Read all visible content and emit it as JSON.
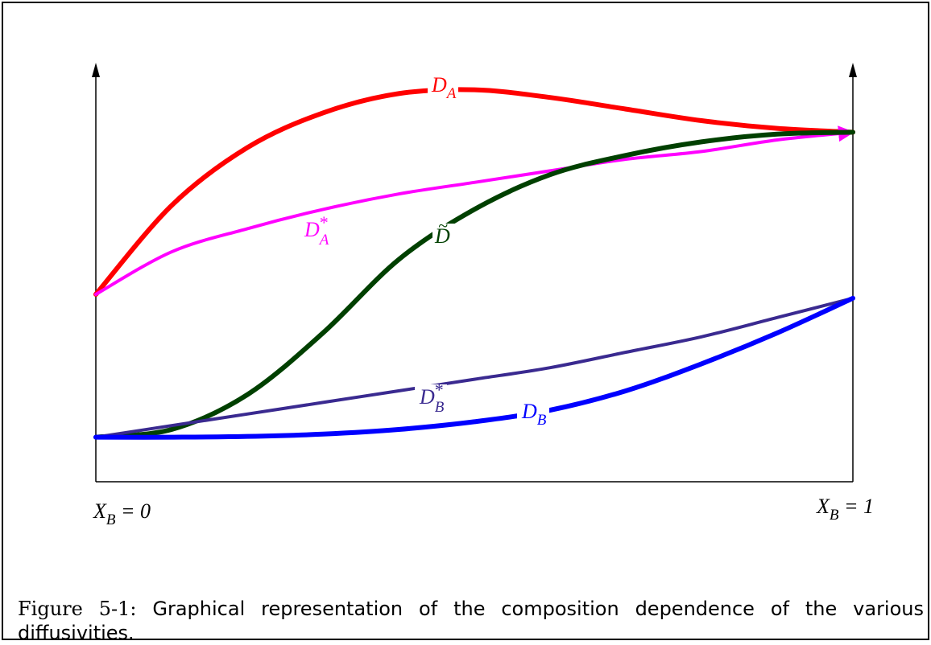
{
  "chart_data": {
    "type": "line",
    "title": "",
    "xlabel": "",
    "ylabel": "",
    "x_axis_labels": {
      "left": "X_B = 0",
      "right": "X_B = 1"
    },
    "x_range": [
      0,
      1
    ],
    "y_range": [
      0,
      1
    ],
    "axes": {
      "left_arrow": true,
      "right_arrow": true,
      "grid": false
    },
    "series": [
      {
        "name": "D_A",
        "label": {
          "base": "D",
          "sub": "A",
          "sup": ""
        },
        "color": "#ff0000",
        "width": 6,
        "points": [
          [
            0,
            0.45
          ],
          [
            0.1,
            0.68
          ],
          [
            0.2,
            0.83
          ],
          [
            0.3,
            0.92
          ],
          [
            0.4,
            0.97
          ],
          [
            0.5,
            0.98
          ],
          [
            0.6,
            0.96
          ],
          [
            0.7,
            0.93
          ],
          [
            0.8,
            0.9
          ],
          [
            0.9,
            0.88
          ],
          [
            1,
            0.87
          ]
        ]
      },
      {
        "name": "D*_A",
        "label": {
          "base": "D",
          "sub": "A",
          "sup": "*"
        },
        "color": "#ff00ff",
        "width": 4,
        "arrow": true,
        "points": [
          [
            0,
            0.45
          ],
          [
            0.1,
            0.56
          ],
          [
            0.2,
            0.62
          ],
          [
            0.3,
            0.67
          ],
          [
            0.4,
            0.71
          ],
          [
            0.5,
            0.74
          ],
          [
            0.6,
            0.77
          ],
          [
            0.7,
            0.8
          ],
          [
            0.8,
            0.82
          ],
          [
            0.9,
            0.85
          ],
          [
            1,
            0.87
          ]
        ]
      },
      {
        "name": "D~",
        "label": {
          "base": "D",
          "sub": "",
          "sup": "",
          "accent": "~"
        },
        "color": "#004000",
        "width": 6,
        "points": [
          [
            0,
            0.08
          ],
          [
            0.1,
            0.1
          ],
          [
            0.2,
            0.19
          ],
          [
            0.3,
            0.35
          ],
          [
            0.4,
            0.54
          ],
          [
            0.5,
            0.67
          ],
          [
            0.6,
            0.76
          ],
          [
            0.7,
            0.81
          ],
          [
            0.8,
            0.845
          ],
          [
            0.9,
            0.865
          ],
          [
            1,
            0.87
          ]
        ]
      },
      {
        "name": "D*_B",
        "label": {
          "base": "D",
          "sub": "B",
          "sup": "*"
        },
        "color": "#3a2a90",
        "width": 4,
        "points": [
          [
            0,
            0.08
          ],
          [
            0.1,
            0.11
          ],
          [
            0.2,
            0.14
          ],
          [
            0.3,
            0.17
          ],
          [
            0.4,
            0.2
          ],
          [
            0.5,
            0.23
          ],
          [
            0.6,
            0.26
          ],
          [
            0.7,
            0.3
          ],
          [
            0.8,
            0.34
          ],
          [
            0.9,
            0.39
          ],
          [
            1,
            0.44
          ]
        ]
      },
      {
        "name": "D_B",
        "label": {
          "base": "D",
          "sub": "B",
          "sup": ""
        },
        "color": "#0000ff",
        "width": 6,
        "points": [
          [
            0,
            0.08
          ],
          [
            0.1,
            0.08
          ],
          [
            0.2,
            0.082
          ],
          [
            0.3,
            0.088
          ],
          [
            0.4,
            0.1
          ],
          [
            0.5,
            0.12
          ],
          [
            0.6,
            0.15
          ],
          [
            0.7,
            0.2
          ],
          [
            0.8,
            0.27
          ],
          [
            0.9,
            0.35
          ],
          [
            1,
            0.44
          ]
        ]
      }
    ]
  },
  "caption": {
    "prefix": "Figure 5-1:",
    "text": "Graphical representation of the composition dependence of the various diffusivities."
  }
}
